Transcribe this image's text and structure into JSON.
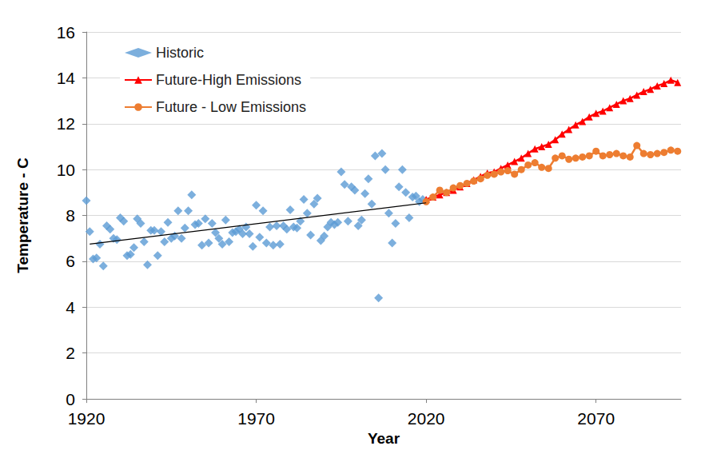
{
  "chart_data": {
    "type": "scatter",
    "x_label": "Year",
    "y_label": "Temperature - C",
    "xlim": [
      1920,
      2095
    ],
    "xticks": [
      1920,
      1970,
      2020,
      2070
    ],
    "ylim": [
      0,
      16
    ],
    "yticks": [
      0,
      2,
      4,
      6,
      8,
      10,
      12,
      14,
      16
    ],
    "grid": true,
    "legend": "upper left",
    "series": [
      {
        "name": "Historic",
        "type": "scatter",
        "color": "#5B9BD5",
        "marker": "diamond",
        "x": [
          1920,
          1921,
          1922,
          1923,
          1924,
          1925,
          1926,
          1927,
          1928,
          1929,
          1930,
          1931,
          1932,
          1933,
          1934,
          1935,
          1936,
          1937,
          1938,
          1939,
          1940,
          1941,
          1942,
          1943,
          1944,
          1945,
          1946,
          1947,
          1948,
          1949,
          1950,
          1951,
          1952,
          1953,
          1954,
          1955,
          1956,
          1957,
          1958,
          1959,
          1960,
          1961,
          1962,
          1963,
          1964,
          1965,
          1966,
          1967,
          1968,
          1969,
          1970,
          1971,
          1972,
          1973,
          1974,
          1975,
          1976,
          1977,
          1978,
          1979,
          1980,
          1981,
          1982,
          1983,
          1984,
          1985,
          1986,
          1987,
          1988,
          1989,
          1990,
          1991,
          1992,
          1993,
          1994,
          1995,
          1996,
          1997,
          1998,
          1999,
          2000,
          2001,
          2002,
          2003,
          2004,
          2005,
          2006,
          2007,
          2008,
          2009,
          2010,
          2011,
          2012,
          2013,
          2014,
          2015,
          2016,
          2017,
          2018,
          2019
        ],
        "values": [
          8.65,
          7.3,
          6.1,
          6.15,
          6.75,
          5.8,
          7.55,
          7.4,
          7.0,
          6.95,
          7.9,
          7.75,
          6.25,
          6.3,
          6.6,
          7.85,
          7.65,
          6.85,
          5.85,
          7.35,
          7.35,
          6.25,
          7.3,
          6.85,
          7.7,
          7.0,
          7.1,
          8.2,
          7.0,
          7.45,
          8.2,
          8.9,
          7.6,
          7.65,
          6.7,
          7.85,
          6.8,
          7.65,
          7.25,
          7.0,
          6.75,
          7.8,
          6.85,
          7.25,
          7.3,
          7.4,
          7.2,
          7.5,
          7.2,
          6.65,
          8.45,
          7.05,
          8.2,
          6.8,
          7.5,
          6.7,
          7.55,
          6.75,
          7.55,
          7.4,
          8.25,
          7.5,
          7.45,
          7.75,
          8.7,
          8.1,
          7.15,
          8.5,
          8.75,
          6.9,
          7.1,
          7.5,
          7.7,
          7.6,
          7.7,
          9.9,
          9.35,
          7.75,
          9.25,
          9.1,
          7.55,
          7.8,
          8.95,
          9.6,
          8.5,
          10.6,
          4.4,
          10.7,
          10.0,
          8.1,
          6.8,
          7.65,
          9.25,
          10.0,
          9.0,
          7.9,
          8.8,
          8.85,
          8.6,
          8.7
        ]
      },
      {
        "name": "Future-High Emissions",
        "type": "line",
        "color": "#FF0000",
        "marker": "triangle",
        "line_style": "solid",
        "x": [
          2020,
          2022,
          2024,
          2026,
          2028,
          2030,
          2032,
          2034,
          2036,
          2038,
          2040,
          2042,
          2044,
          2046,
          2048,
          2050,
          2052,
          2054,
          2056,
          2058,
          2060,
          2062,
          2064,
          2066,
          2068,
          2070,
          2072,
          2074,
          2076,
          2078,
          2080,
          2082,
          2084,
          2086,
          2088,
          2090,
          2092,
          2094
        ],
        "values": [
          8.7,
          8.8,
          8.9,
          9.0,
          9.1,
          9.25,
          9.4,
          9.55,
          9.7,
          9.85,
          9.9,
          10.05,
          10.2,
          10.35,
          10.5,
          10.7,
          10.9,
          11.0,
          11.1,
          11.3,
          11.55,
          11.75,
          11.95,
          12.1,
          12.3,
          12.45,
          12.55,
          12.7,
          12.85,
          13.0,
          13.1,
          13.25,
          13.4,
          13.5,
          13.65,
          13.75,
          13.9,
          13.8
        ]
      },
      {
        "name": "Future - Low Emissions",
        "type": "line",
        "color": "#ED7D31",
        "marker": "circle",
        "line_style": "solid",
        "x": [
          2020,
          2022,
          2024,
          2026,
          2028,
          2030,
          2032,
          2034,
          2036,
          2038,
          2040,
          2042,
          2044,
          2046,
          2048,
          2050,
          2052,
          2054,
          2056,
          2058,
          2060,
          2062,
          2064,
          2066,
          2068,
          2070,
          2072,
          2074,
          2076,
          2078,
          2080,
          2082,
          2084,
          2086,
          2088,
          2090,
          2092,
          2094
        ],
        "values": [
          8.6,
          8.8,
          9.1,
          9.0,
          9.2,
          9.3,
          9.4,
          9.5,
          9.6,
          9.75,
          9.8,
          9.9,
          9.95,
          9.8,
          10.0,
          10.2,
          10.3,
          10.1,
          10.05,
          10.5,
          10.6,
          10.45,
          10.5,
          10.55,
          10.6,
          10.8,
          10.6,
          10.65,
          10.7,
          10.6,
          10.55,
          11.05,
          10.7,
          10.65,
          10.7,
          10.75,
          10.85,
          10.8
        ]
      }
    ],
    "trend": {
      "color": "#000000",
      "x": [
        1921,
        2020
      ],
      "values": [
        6.75,
        8.55
      ]
    }
  }
}
